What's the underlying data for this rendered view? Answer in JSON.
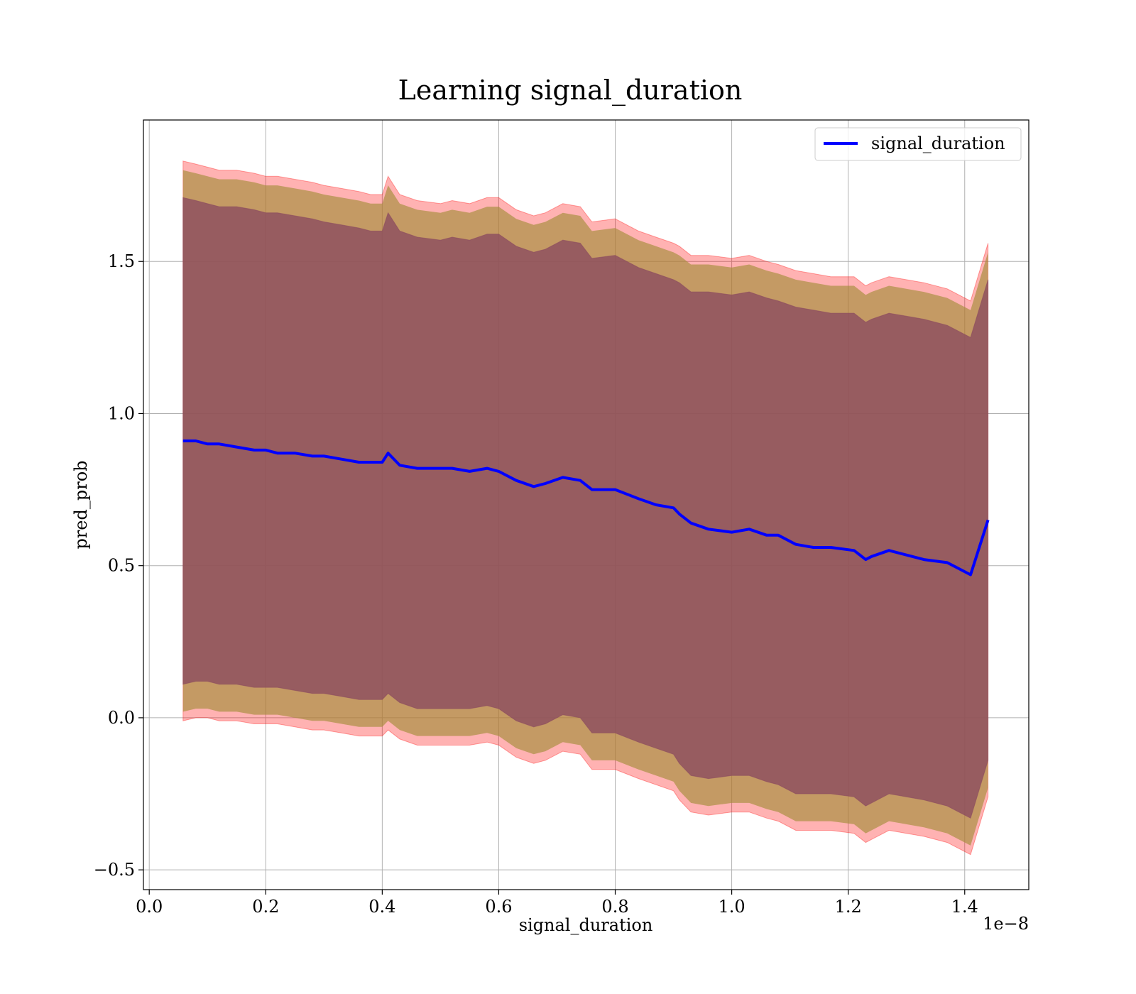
{
  "chart_data": {
    "type": "line",
    "title": "Learning signal_duration",
    "xlabel": "signal_duration",
    "ylabel": "pred_prob",
    "x_offset_label": "1e−8",
    "xlim": [
      -0.01,
      1.51
    ],
    "ylim": [
      -0.565,
      1.965
    ],
    "xticks": [
      0.0,
      0.2,
      0.4,
      0.6,
      0.8,
      1.0,
      1.2,
      1.4
    ],
    "xtick_labels": [
      "0.0",
      "0.2",
      "0.4",
      "0.6",
      "0.8",
      "1.0",
      "1.2",
      "1.4"
    ],
    "yticks": [
      -0.5,
      0.0,
      0.5,
      1.0,
      1.5
    ],
    "ytick_labels": [
      "−0.5",
      "0.0",
      "0.5",
      "1.0",
      "1.5"
    ],
    "grid": true,
    "legend_position": "top-right",
    "colors": {
      "line": "#0000ff",
      "outer_band": "#ff0000",
      "middle_band": "#a58d3a",
      "inner_band": "#8b4a5f",
      "grid": "#b0b0b0"
    },
    "series": [
      {
        "name": "signal_duration",
        "x": [
          0.058,
          0.08,
          0.1,
          0.12,
          0.15,
          0.18,
          0.2,
          0.22,
          0.25,
          0.28,
          0.3,
          0.33,
          0.36,
          0.38,
          0.4,
          0.41,
          0.43,
          0.46,
          0.5,
          0.52,
          0.55,
          0.58,
          0.6,
          0.63,
          0.66,
          0.68,
          0.71,
          0.74,
          0.76,
          0.8,
          0.84,
          0.87,
          0.9,
          0.91,
          0.93,
          0.96,
          1.0,
          1.03,
          1.06,
          1.08,
          1.11,
          1.14,
          1.17,
          1.21,
          1.23,
          1.24,
          1.27,
          1.33,
          1.37,
          1.41,
          1.44
        ],
        "y": [
          0.91,
          0.91,
          0.9,
          0.9,
          0.89,
          0.88,
          0.88,
          0.87,
          0.87,
          0.86,
          0.86,
          0.85,
          0.84,
          0.84,
          0.84,
          0.87,
          0.83,
          0.82,
          0.82,
          0.82,
          0.81,
          0.82,
          0.81,
          0.78,
          0.76,
          0.77,
          0.79,
          0.78,
          0.75,
          0.75,
          0.72,
          0.7,
          0.69,
          0.67,
          0.64,
          0.62,
          0.61,
          0.62,
          0.6,
          0.6,
          0.57,
          0.56,
          0.56,
          0.55,
          0.52,
          0.53,
          0.55,
          0.52,
          0.51,
          0.47,
          0.65
        ],
        "outer_band": {
          "upper": [
            1.83,
            1.82,
            1.81,
            1.8,
            1.8,
            1.79,
            1.78,
            1.78,
            1.77,
            1.76,
            1.75,
            1.74,
            1.73,
            1.72,
            1.72,
            1.78,
            1.72,
            1.7,
            1.69,
            1.7,
            1.69,
            1.71,
            1.71,
            1.67,
            1.65,
            1.66,
            1.69,
            1.68,
            1.63,
            1.64,
            1.6,
            1.58,
            1.56,
            1.55,
            1.52,
            1.52,
            1.51,
            1.52,
            1.5,
            1.49,
            1.47,
            1.46,
            1.45,
            1.45,
            1.42,
            1.43,
            1.45,
            1.43,
            1.41,
            1.37,
            1.56
          ],
          "lower": [
            -0.01,
            0.0,
            0.0,
            -0.01,
            -0.01,
            -0.02,
            -0.02,
            -0.02,
            -0.03,
            -0.04,
            -0.04,
            -0.05,
            -0.06,
            -0.06,
            -0.06,
            -0.04,
            -0.07,
            -0.09,
            -0.09,
            -0.09,
            -0.09,
            -0.08,
            -0.09,
            -0.13,
            -0.15,
            -0.14,
            -0.11,
            -0.12,
            -0.17,
            -0.17,
            -0.2,
            -0.22,
            -0.24,
            -0.27,
            -0.31,
            -0.32,
            -0.31,
            -0.31,
            -0.33,
            -0.34,
            -0.37,
            -0.37,
            -0.37,
            -0.38,
            -0.41,
            -0.4,
            -0.37,
            -0.39,
            -0.41,
            -0.45,
            -0.26
          ]
        },
        "middle_band": {
          "upper": [
            1.8,
            1.79,
            1.78,
            1.77,
            1.77,
            1.76,
            1.75,
            1.75,
            1.74,
            1.73,
            1.72,
            1.71,
            1.7,
            1.69,
            1.69,
            1.75,
            1.69,
            1.67,
            1.66,
            1.67,
            1.66,
            1.68,
            1.68,
            1.64,
            1.62,
            1.63,
            1.66,
            1.65,
            1.6,
            1.61,
            1.57,
            1.55,
            1.53,
            1.52,
            1.49,
            1.49,
            1.48,
            1.49,
            1.47,
            1.46,
            1.44,
            1.43,
            1.42,
            1.42,
            1.39,
            1.4,
            1.42,
            1.4,
            1.38,
            1.34,
            1.53
          ],
          "lower": [
            0.02,
            0.03,
            0.03,
            0.02,
            0.02,
            0.01,
            0.01,
            0.01,
            0.0,
            -0.01,
            -0.01,
            -0.02,
            -0.03,
            -0.03,
            -0.03,
            -0.01,
            -0.04,
            -0.06,
            -0.06,
            -0.06,
            -0.06,
            -0.05,
            -0.06,
            -0.1,
            -0.12,
            -0.11,
            -0.08,
            -0.09,
            -0.14,
            -0.14,
            -0.17,
            -0.19,
            -0.21,
            -0.24,
            -0.28,
            -0.29,
            -0.28,
            -0.28,
            -0.3,
            -0.31,
            -0.34,
            -0.34,
            -0.34,
            -0.35,
            -0.38,
            -0.37,
            -0.34,
            -0.36,
            -0.38,
            -0.42,
            -0.23
          ]
        },
        "inner_band": {
          "upper": [
            1.71,
            1.7,
            1.69,
            1.68,
            1.68,
            1.67,
            1.66,
            1.66,
            1.65,
            1.64,
            1.63,
            1.62,
            1.61,
            1.6,
            1.6,
            1.66,
            1.6,
            1.58,
            1.57,
            1.58,
            1.57,
            1.59,
            1.59,
            1.55,
            1.53,
            1.54,
            1.57,
            1.56,
            1.51,
            1.52,
            1.48,
            1.46,
            1.44,
            1.43,
            1.4,
            1.4,
            1.39,
            1.4,
            1.38,
            1.37,
            1.35,
            1.34,
            1.33,
            1.33,
            1.3,
            1.31,
            1.33,
            1.31,
            1.29,
            1.25,
            1.44
          ],
          "lower": [
            0.11,
            0.12,
            0.12,
            0.11,
            0.11,
            0.1,
            0.1,
            0.1,
            0.09,
            0.08,
            0.08,
            0.07,
            0.06,
            0.06,
            0.06,
            0.08,
            0.05,
            0.03,
            0.03,
            0.03,
            0.03,
            0.04,
            0.03,
            -0.01,
            -0.03,
            -0.02,
            0.01,
            0.0,
            -0.05,
            -0.05,
            -0.08,
            -0.1,
            -0.12,
            -0.15,
            -0.19,
            -0.2,
            -0.19,
            -0.19,
            -0.21,
            -0.22,
            -0.25,
            -0.25,
            -0.25,
            -0.26,
            -0.29,
            -0.28,
            -0.25,
            -0.27,
            -0.29,
            -0.33,
            -0.14
          ]
        }
      }
    ]
  }
}
